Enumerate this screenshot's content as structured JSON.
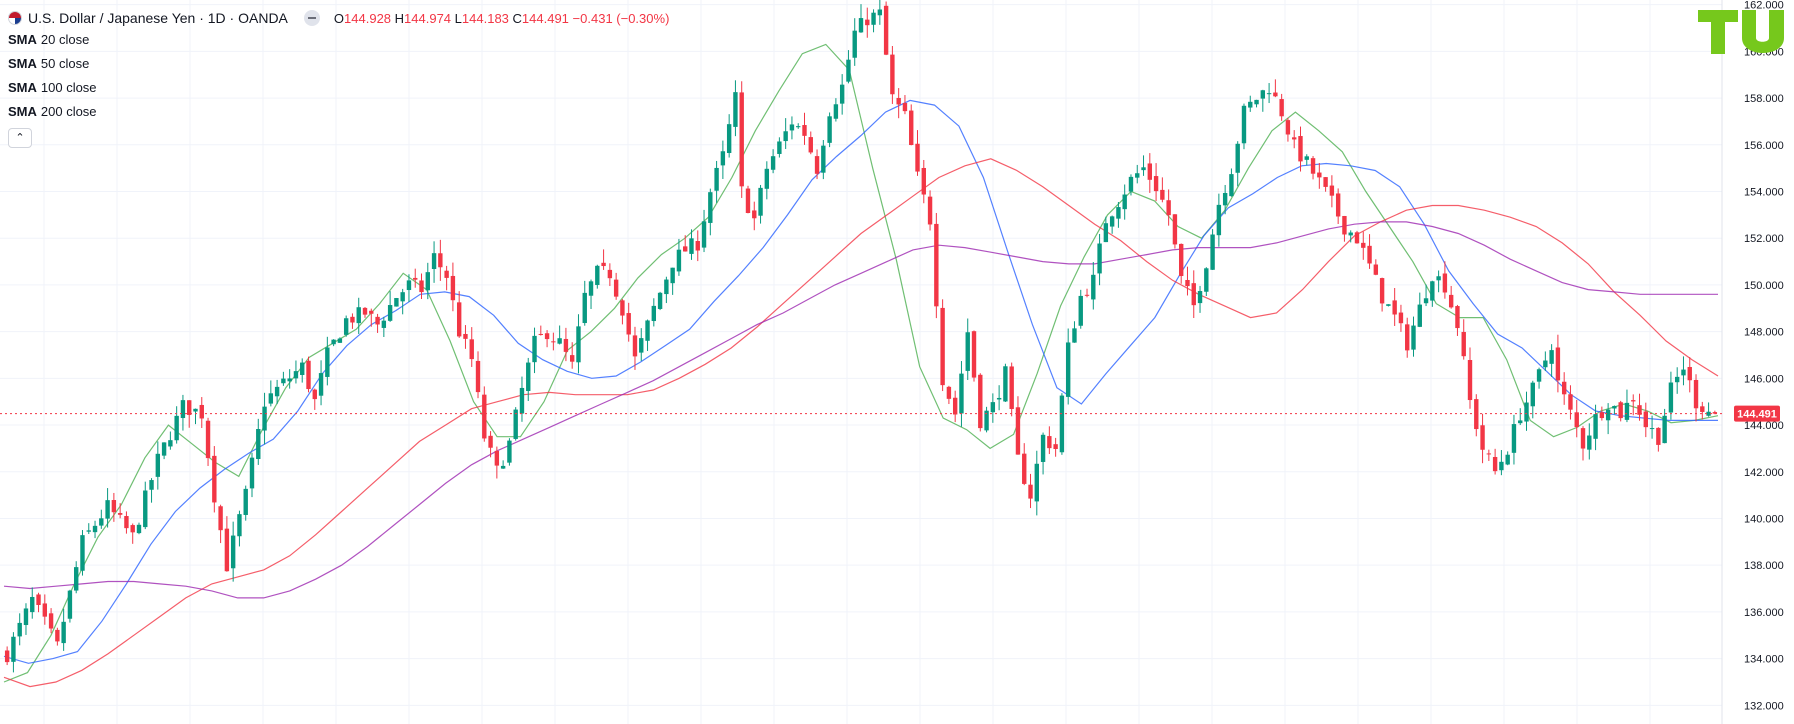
{
  "header": {
    "symbol_title": "U.S. Dollar / Japanese Yen · 1D · OANDA",
    "ohlc": [
      {
        "key": "O",
        "value": "144.928"
      },
      {
        "key": "H",
        "value": "144.974"
      },
      {
        "key": "L",
        "value": "144.183"
      },
      {
        "key": "C",
        "value": "144.491"
      }
    ],
    "change": "−0.431 (−0.30%)"
  },
  "indicators": [
    {
      "name": "SMA",
      "params": "20 close",
      "color": "#4caf50"
    },
    {
      "name": "SMA",
      "params": "50 close",
      "color": "#2962ff"
    },
    {
      "name": "SMA",
      "params": "100 close",
      "color": "#f23645"
    },
    {
      "name": "SMA",
      "params": "200 close",
      "color": "#9c27b0"
    }
  ],
  "collapse_glyph": "⌃",
  "colors": {
    "up": "#089981",
    "down": "#f23645",
    "accent": "#f23645",
    "logo": "#76c81c"
  },
  "chart_data": {
    "type": "candlestick",
    "ylim": [
      131.2,
      162.2
    ],
    "yticks": [
      "132.000",
      "134.000",
      "136.000",
      "138.000",
      "140.000",
      "142.000",
      "144.000",
      "146.000",
      "148.000",
      "150.000",
      "152.000",
      "154.000",
      "156.000",
      "158.000",
      "160.000",
      "162.000"
    ],
    "last_price": "144.491",
    "last_value": 144.491,
    "series": [
      {
        "name": "SMA 20 close",
        "values": [
          133.0,
          133.4,
          135.0,
          137.2,
          139.2,
          140.6,
          142.6,
          144.0,
          143.2,
          142.4,
          141.8,
          143.8,
          145.6,
          146.9,
          147.5,
          148.1,
          149.2,
          150.5,
          149.8,
          147.6,
          145.0,
          143.5,
          143.5,
          145.0,
          147.2,
          148.0,
          149.0,
          150.3,
          151.3,
          152.0,
          152.9,
          154.6,
          156.6,
          158.3,
          159.9,
          160.3,
          159.2,
          155.0,
          151.1,
          146.5,
          144.3,
          143.8,
          143.0,
          143.6,
          146.2,
          149.1,
          151.2,
          153.0,
          154.0,
          153.6,
          152.5,
          152.0,
          153.2,
          155.0,
          156.6,
          157.4,
          156.6,
          155.7,
          154.0,
          152.5,
          151.0,
          149.2,
          148.6,
          148.6,
          146.8,
          144.2,
          143.5,
          143.9,
          144.6,
          144.9,
          144.6,
          144.1,
          144.2,
          144.4
        ]
      },
      {
        "name": "SMA 50 close",
        "values": [
          134.1,
          133.8,
          134.0,
          134.3,
          135.6,
          137.2,
          138.9,
          140.3,
          141.3,
          142.1,
          142.8,
          143.4,
          144.6,
          146.2,
          147.4,
          148.3,
          148.9,
          149.6,
          149.7,
          149.5,
          148.7,
          147.5,
          146.8,
          146.3,
          146.0,
          146.1,
          146.7,
          147.4,
          148.1,
          149.3,
          150.4,
          151.6,
          153.0,
          154.5,
          155.5,
          156.4,
          157.4,
          157.9,
          157.7,
          156.8,
          154.6,
          151.4,
          148.3,
          145.6,
          144.9,
          146.2,
          147.4,
          148.6,
          150.4,
          152.1,
          153.3,
          153.9,
          154.6,
          155.1,
          155.2,
          155.1,
          154.9,
          154.2,
          152.6,
          150.6,
          149.2,
          147.9,
          147.3,
          146.3,
          145.3,
          144.6,
          144.4,
          144.3,
          144.2,
          144.2,
          144.2
        ]
      },
      {
        "name": "SMA 100 close",
        "values": [
          133.2,
          132.8,
          133.0,
          133.5,
          134.2,
          135.0,
          135.8,
          136.6,
          137.2,
          137.5,
          137.8,
          138.4,
          139.3,
          140.3,
          141.3,
          142.3,
          143.3,
          144.0,
          144.7,
          145.0,
          145.3,
          145.4,
          145.3,
          145.3,
          145.3,
          145.5,
          146.0,
          146.6,
          147.3,
          148.2,
          149.2,
          150.2,
          151.2,
          152.2,
          153.0,
          153.8,
          154.6,
          155.1,
          155.4,
          154.9,
          154.2,
          153.4,
          152.6,
          151.9,
          151.0,
          150.2,
          149.6,
          149.1,
          148.6,
          148.8,
          149.8,
          151.0,
          152.1,
          152.7,
          153.2,
          153.4,
          153.4,
          153.2,
          152.9,
          152.5,
          151.8,
          150.9,
          149.7,
          148.7,
          147.6,
          146.8,
          146.1
        ]
      },
      {
        "name": "SMA 200 close",
        "values": [
          137.1,
          137.0,
          137.1,
          137.2,
          137.3,
          137.3,
          137.2,
          137.1,
          136.9,
          136.6,
          136.6,
          136.9,
          137.4,
          138.0,
          138.8,
          139.7,
          140.6,
          141.5,
          142.3,
          142.9,
          143.4,
          143.9,
          144.4,
          144.9,
          145.4,
          145.9,
          146.5,
          147.1,
          147.7,
          148.3,
          148.8,
          149.4,
          150.0,
          150.5,
          151.0,
          151.5,
          151.7,
          151.6,
          151.4,
          151.2,
          151.0,
          150.9,
          150.9,
          151.1,
          151.3,
          151.5,
          151.6,
          151.6,
          151.6,
          151.8,
          152.1,
          152.4,
          152.6,
          152.7,
          152.7,
          152.5,
          152.2,
          151.7,
          151.1,
          150.6,
          150.1,
          149.8,
          149.7,
          149.6,
          149.6,
          149.6,
          149.6
        ]
      }
    ],
    "candle_path": [
      [
        0,
        134.2
      ],
      [
        4,
        136.5
      ],
      [
        8,
        134.5
      ],
      [
        12,
        139.0
      ],
      [
        16,
        140.5
      ],
      [
        20,
        139.2
      ],
      [
        24,
        142.5
      ],
      [
        28,
        144.8
      ],
      [
        31,
        144.5
      ],
      [
        33,
        141.0
      ],
      [
        35,
        138.0
      ],
      [
        38,
        141.0
      ],
      [
        41,
        145.0
      ],
      [
        44,
        145.8
      ],
      [
        47,
        146.5
      ],
      [
        49,
        145.0
      ],
      [
        51,
        147.0
      ],
      [
        54,
        148.5
      ],
      [
        57,
        148.8
      ],
      [
        59,
        148.3
      ],
      [
        62,
        149.5
      ],
      [
        64,
        150.0
      ],
      [
        66,
        149.8
      ],
      [
        68,
        151.2
      ],
      [
        70,
        150.4
      ],
      [
        72,
        148.0
      ],
      [
        74,
        146.8
      ],
      [
        76,
        143.5
      ],
      [
        78,
        142.0
      ],
      [
        80,
        143.2
      ],
      [
        82,
        145.5
      ],
      [
        84,
        147.5
      ],
      [
        86,
        148.0
      ],
      [
        88,
        147.5
      ],
      [
        90,
        146.5
      ],
      [
        92,
        149.5
      ],
      [
        94,
        150.5
      ],
      [
        96,
        150.5
      ],
      [
        98,
        149.0
      ],
      [
        100,
        146.8
      ],
      [
        103,
        149.0
      ],
      [
        106,
        151.0
      ],
      [
        108,
        151.5
      ],
      [
        110,
        151.8
      ],
      [
        112,
        154.0
      ],
      [
        114,
        155.5
      ],
      [
        116,
        158.0
      ],
      [
        117,
        154.0
      ],
      [
        119,
        152.8
      ],
      [
        121,
        155.0
      ],
      [
        123,
        156.0
      ],
      [
        125,
        157.0
      ],
      [
        127,
        156.5
      ],
      [
        129,
        155.0
      ],
      [
        131,
        157.5
      ],
      [
        133,
        158.5
      ],
      [
        135,
        160.8
      ],
      [
        137,
        161.4
      ],
      [
        139,
        161.6
      ],
      [
        141,
        158.0
      ],
      [
        143,
        157.2
      ],
      [
        145,
        154.6
      ],
      [
        147,
        152.8
      ],
      [
        149,
        146.0
      ],
      [
        151,
        144.5
      ],
      [
        153,
        148.0
      ],
      [
        155,
        144.2
      ],
      [
        157,
        144.8
      ],
      [
        159,
        146.2
      ],
      [
        161,
        142.5
      ],
      [
        163,
        141.0
      ],
      [
        165,
        143.5
      ],
      [
        167,
        143.0
      ],
      [
        169,
        147.3
      ],
      [
        171,
        149.5
      ],
      [
        173,
        150.2
      ],
      [
        175,
        152.8
      ],
      [
        177,
        153.6
      ],
      [
        179,
        154.5
      ],
      [
        181,
        155.0
      ],
      [
        183,
        154.2
      ],
      [
        185,
        153.0
      ],
      [
        187,
        150.2
      ],
      [
        189,
        149.1
      ],
      [
        191,
        151.0
      ],
      [
        193,
        153.5
      ],
      [
        195,
        155.0
      ],
      [
        197,
        157.4
      ],
      [
        199,
        158.0
      ],
      [
        201,
        158.5
      ],
      [
        203,
        157.4
      ],
      [
        205,
        155.9
      ],
      [
        207,
        155.2
      ],
      [
        209,
        154.4
      ],
      [
        211,
        153.5
      ],
      [
        213,
        152.5
      ],
      [
        215,
        152.0
      ],
      [
        217,
        150.8
      ],
      [
        219,
        149.5
      ],
      [
        221,
        148.6
      ],
      [
        223,
        147.5
      ],
      [
        225,
        149.0
      ],
      [
        227,
        150.5
      ],
      [
        229,
        150.0
      ],
      [
        231,
        148.3
      ],
      [
        233,
        145.0
      ],
      [
        235,
        143.0
      ],
      [
        237,
        142.0
      ],
      [
        239,
        143.0
      ],
      [
        241,
        144.5
      ],
      [
        243,
        145.5
      ],
      [
        245,
        146.8
      ],
      [
        246,
        147.5
      ],
      [
        247,
        145.8
      ],
      [
        249,
        144.5
      ],
      [
        251,
        143.2
      ],
      [
        253,
        144.3
      ],
      [
        255,
        145.0
      ],
      [
        257,
        144.5
      ],
      [
        259,
        145.2
      ],
      [
        261,
        144.0
      ],
      [
        263,
        143.5
      ],
      [
        265,
        145.5
      ],
      [
        267,
        146.5
      ],
      [
        269,
        145.0
      ],
      [
        271,
        144.6
      ],
      [
        272,
        144.49
      ]
    ]
  }
}
